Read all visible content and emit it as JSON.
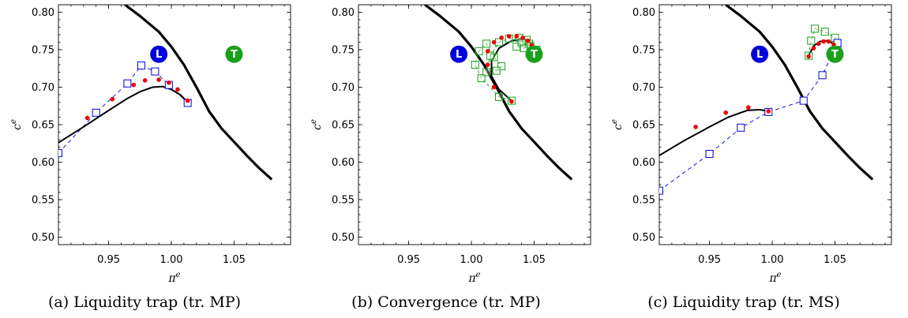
{
  "chart_data": [
    {
      "type": "scatter",
      "caption": "(a) Liquidity trap (tr. MP)",
      "xlabel": "π",
      "xlabel_sup": "e",
      "ylabel": "c",
      "ylabel_sup": "e",
      "xlim": [
        0.91,
        1.095
      ],
      "ylim": [
        0.49,
        0.81
      ],
      "xticks": [
        0.95,
        1.0,
        1.05
      ],
      "xtick_labels": [
        "0.95",
        "1.00",
        "1.05"
      ],
      "yticks": [
        0.5,
        0.55,
        0.6,
        0.65,
        0.7,
        0.75,
        0.8
      ],
      "ytick_labels": [
        "0.50",
        "0.55",
        "0.60",
        "0.65",
        "0.70",
        "0.75",
        "0.80"
      ],
      "markers": [
        {
          "label": "L",
          "x": 0.99,
          "y": 0.744,
          "color": "#0000dd"
        },
        {
          "label": "T",
          "x": 1.05,
          "y": 0.744,
          "color": "#1aa01a"
        }
      ],
      "thick_curve": [
        [
          0.963,
          0.81
        ],
        [
          0.975,
          0.795
        ],
        [
          0.99,
          0.774
        ],
        [
          1.0,
          0.754
        ],
        [
          1.01,
          0.73
        ],
        [
          1.02,
          0.7
        ],
        [
          1.03,
          0.668
        ],
        [
          1.04,
          0.645
        ],
        [
          1.05,
          0.627
        ],
        [
          1.06,
          0.609
        ],
        [
          1.07,
          0.592
        ],
        [
          1.08,
          0.577
        ]
      ],
      "black_path": [
        [
          0.91,
          0.626
        ],
        [
          0.93,
          0.647
        ],
        [
          0.95,
          0.669
        ],
        [
          0.965,
          0.685
        ],
        [
          0.975,
          0.694
        ],
        [
          0.985,
          0.7
        ],
        [
          0.993,
          0.701
        ],
        [
          1.0,
          0.697
        ],
        [
          1.007,
          0.69
        ],
        [
          1.013,
          0.68
        ]
      ],
      "blue_squares": [
        [
          0.91,
          0.612
        ],
        [
          0.94,
          0.666
        ],
        [
          0.965,
          0.705
        ],
        [
          0.976,
          0.729
        ],
        [
          0.987,
          0.721
        ],
        [
          0.998,
          0.703
        ],
        [
          1.013,
          0.679
        ]
      ],
      "red_dots": [
        [
          0.933,
          0.659
        ],
        [
          0.953,
          0.684
        ],
        [
          0.97,
          0.703
        ],
        [
          0.979,
          0.709
        ],
        [
          0.99,
          0.71
        ],
        [
          0.998,
          0.706
        ],
        [
          1.005,
          0.697
        ],
        [
          1.013,
          0.682
        ]
      ],
      "green_squares": [],
      "green_path": []
    },
    {
      "type": "scatter",
      "caption": "(b) Convergence (tr. MP)",
      "xlabel": "π",
      "xlabel_sup": "e",
      "ylabel": "c",
      "ylabel_sup": "e",
      "xlim": [
        0.91,
        1.095
      ],
      "ylim": [
        0.49,
        0.81
      ],
      "xticks": [
        0.95,
        1.0,
        1.05
      ],
      "xtick_labels": [
        "0.95",
        "1.00",
        "1.05"
      ],
      "yticks": [
        0.5,
        0.55,
        0.6,
        0.65,
        0.7,
        0.75,
        0.8
      ],
      "ytick_labels": [
        "0.50",
        "0.55",
        "0.60",
        "0.65",
        "0.70",
        "0.75",
        "0.80"
      ],
      "markers": [
        {
          "label": "L",
          "x": 0.99,
          "y": 0.744,
          "color": "#0000dd"
        },
        {
          "label": "T",
          "x": 1.05,
          "y": 0.744,
          "color": "#1aa01a"
        }
      ],
      "thick_curve": [
        [
          0.963,
          0.81
        ],
        [
          0.975,
          0.795
        ],
        [
          0.99,
          0.774
        ],
        [
          1.0,
          0.754
        ],
        [
          1.01,
          0.73
        ],
        [
          1.02,
          0.7
        ],
        [
          1.03,
          0.668
        ],
        [
          1.04,
          0.645
        ],
        [
          1.05,
          0.627
        ],
        [
          1.06,
          0.609
        ],
        [
          1.07,
          0.592
        ],
        [
          1.08,
          0.577
        ]
      ],
      "black_path": [
        [
          1.032,
          0.682
        ],
        [
          1.022,
          0.697
        ],
        [
          1.016,
          0.715
        ],
        [
          1.016,
          0.735
        ],
        [
          1.022,
          0.752
        ],
        [
          1.032,
          0.762
        ],
        [
          1.042,
          0.764
        ],
        [
          1.048,
          0.758
        ],
        [
          1.05,
          0.748
        ]
      ],
      "blue_squares": [],
      "red_dots": [
        [
          1.032,
          0.681
        ],
        [
          1.018,
          0.7
        ],
        [
          1.013,
          0.73
        ],
        [
          1.013,
          0.748
        ],
        [
          1.018,
          0.76
        ],
        [
          1.024,
          0.766
        ],
        [
          1.03,
          0.768
        ],
        [
          1.036,
          0.768
        ],
        [
          1.041,
          0.766
        ],
        [
          1.045,
          0.762
        ],
        [
          1.048,
          0.756
        ],
        [
          1.05,
          0.75
        ],
        [
          1.051,
          0.746
        ]
      ],
      "green_squares": [
        [
          1.032,
          0.682
        ],
        [
          1.022,
          0.687
        ],
        [
          1.008,
          0.712
        ],
        [
          1.003,
          0.73
        ],
        [
          1.006,
          0.748
        ],
        [
          1.012,
          0.758
        ],
        [
          1.018,
          0.74
        ],
        [
          1.024,
          0.728
        ],
        [
          1.02,
          0.722
        ],
        [
          1.012,
          0.72
        ],
        [
          1.015,
          0.742
        ],
        [
          1.022,
          0.76
        ],
        [
          1.03,
          0.765
        ],
        [
          1.038,
          0.766
        ],
        [
          1.044,
          0.763
        ],
        [
          1.046,
          0.758
        ],
        [
          1.042,
          0.752
        ],
        [
          1.036,
          0.754
        ],
        [
          1.04,
          0.76
        ],
        [
          1.047,
          0.755
        ],
        [
          1.052,
          0.75
        ]
      ],
      "green_path": [
        [
          1.032,
          0.682
        ],
        [
          1.022,
          0.687
        ],
        [
          1.008,
          0.712
        ],
        [
          1.003,
          0.73
        ],
        [
          1.006,
          0.748
        ],
        [
          1.012,
          0.758
        ],
        [
          1.018,
          0.74
        ],
        [
          1.024,
          0.728
        ],
        [
          1.02,
          0.722
        ],
        [
          1.012,
          0.72
        ],
        [
          1.015,
          0.742
        ],
        [
          1.022,
          0.76
        ],
        [
          1.03,
          0.765
        ],
        [
          1.038,
          0.766
        ],
        [
          1.044,
          0.763
        ],
        [
          1.046,
          0.758
        ],
        [
          1.042,
          0.752
        ],
        [
          1.036,
          0.754
        ],
        [
          1.04,
          0.76
        ],
        [
          1.047,
          0.755
        ],
        [
          1.052,
          0.75
        ]
      ]
    },
    {
      "type": "scatter",
      "caption": "(c) Liquidity trap (tr. MS)",
      "xlabel": "π",
      "xlabel_sup": "e",
      "ylabel": "c",
      "ylabel_sup": "e",
      "xlim": [
        0.91,
        1.095
      ],
      "ylim": [
        0.49,
        0.81
      ],
      "xticks": [
        0.95,
        1.0,
        1.05
      ],
      "xtick_labels": [
        "0.95",
        "1.00",
        "1.05"
      ],
      "yticks": [
        0.5,
        0.55,
        0.6,
        0.65,
        0.7,
        0.75,
        0.8
      ],
      "ytick_labels": [
        "0.50",
        "0.55",
        "0.60",
        "0.65",
        "0.70",
        "0.75",
        "0.80"
      ],
      "markers": [
        {
          "label": "L",
          "x": 0.99,
          "y": 0.744,
          "color": "#0000dd"
        },
        {
          "label": "T",
          "x": 1.05,
          "y": 0.744,
          "color": "#1aa01a"
        }
      ],
      "thick_curve": [
        [
          0.963,
          0.81
        ],
        [
          0.975,
          0.795
        ],
        [
          0.99,
          0.774
        ],
        [
          1.0,
          0.754
        ],
        [
          1.01,
          0.73
        ],
        [
          1.02,
          0.7
        ],
        [
          1.03,
          0.668
        ],
        [
          1.04,
          0.645
        ],
        [
          1.05,
          0.627
        ],
        [
          1.06,
          0.609
        ],
        [
          1.07,
          0.592
        ],
        [
          1.08,
          0.577
        ]
      ],
      "black_path": [
        [
          0.91,
          0.609
        ],
        [
          0.93,
          0.629
        ],
        [
          0.95,
          0.647
        ],
        [
          0.965,
          0.66
        ],
        [
          0.98,
          0.669
        ],
        [
          0.99,
          0.67
        ],
        [
          0.997,
          0.668
        ]
      ],
      "blue_squares": [
        [
          0.91,
          0.562
        ],
        [
          0.95,
          0.611
        ],
        [
          0.975,
          0.646
        ],
        [
          0.997,
          0.667
        ],
        [
          1.025,
          0.682
        ],
        [
          1.04,
          0.716
        ],
        [
          1.052,
          0.759
        ]
      ],
      "red_dots": [
        [
          0.939,
          0.647
        ],
        [
          0.963,
          0.666
        ],
        [
          0.981,
          0.673
        ],
        [
          0.997,
          0.668
        ],
        [
          1.029,
          0.741
        ],
        [
          1.033,
          0.752
        ],
        [
          1.037,
          0.758
        ],
        [
          1.041,
          0.761
        ],
        [
          1.045,
          0.761
        ],
        [
          1.049,
          0.757
        ],
        [
          1.052,
          0.752
        ],
        [
          1.053,
          0.747
        ]
      ],
      "green_squares": [
        [
          1.029,
          0.742
        ],
        [
          1.031,
          0.762
        ],
        [
          1.034,
          0.778
        ],
        [
          1.042,
          0.774
        ],
        [
          1.05,
          0.766
        ],
        [
          1.052,
          0.75
        ]
      ],
      "green_path": [
        [
          1.029,
          0.742
        ],
        [
          1.031,
          0.762
        ],
        [
          1.034,
          0.778
        ],
        [
          1.042,
          0.774
        ],
        [
          1.05,
          0.766
        ],
        [
          1.052,
          0.75
        ]
      ],
      "black_path2": [
        [
          1.029,
          0.742
        ],
        [
          1.033,
          0.755
        ],
        [
          1.038,
          0.761
        ],
        [
          1.044,
          0.762
        ],
        [
          1.049,
          0.758
        ],
        [
          1.052,
          0.751
        ]
      ]
    }
  ]
}
